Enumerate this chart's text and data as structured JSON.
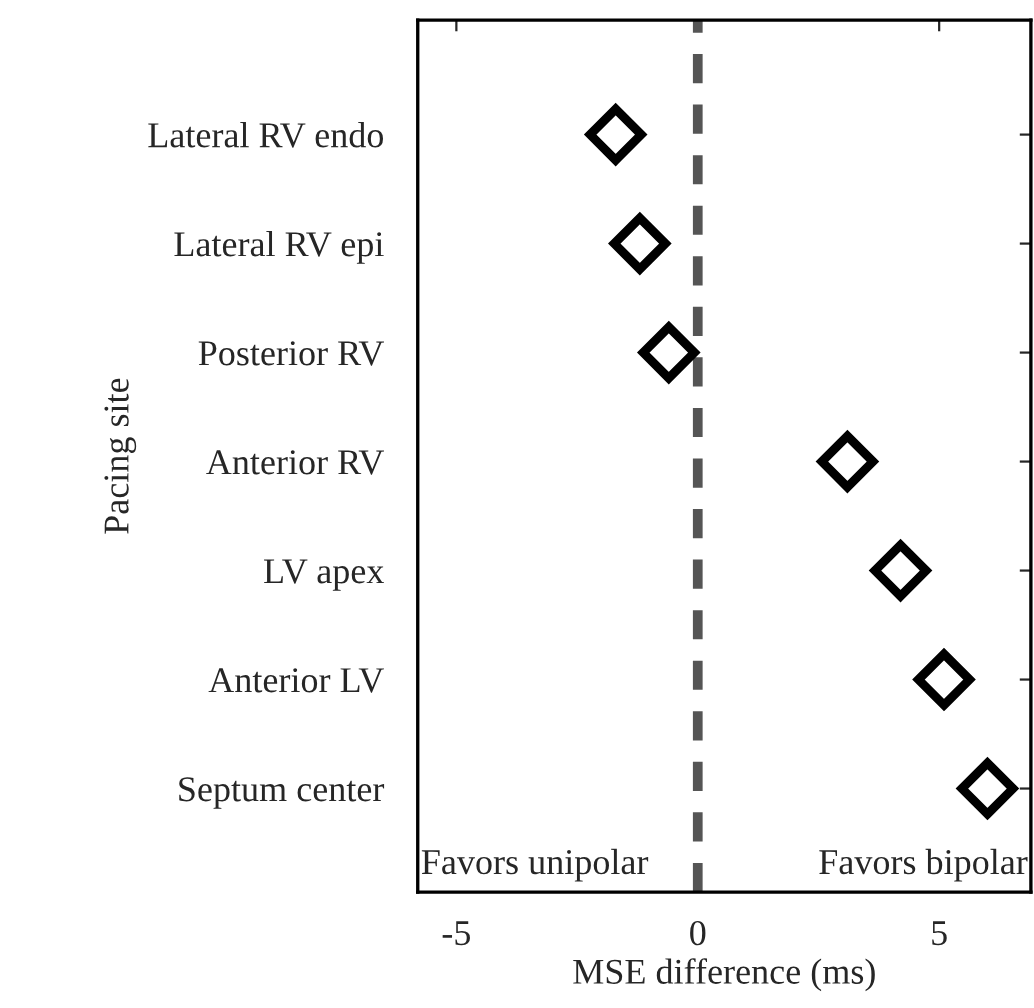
{
  "chart_data": {
    "type": "scatter",
    "xlabel": "MSE difference (ms)",
    "ylabel": "Pacing site",
    "categories": [
      "Lateral RV endo",
      "Lateral RV epi",
      "Posterior RV",
      "Anterior RV",
      "LV apex",
      "Anterior LV",
      "Septum center"
    ],
    "orientation": "horizontal",
    "series": [
      {
        "color": "#000000",
        "values": [
          -1.7,
          -1.2,
          -0.6,
          3.1,
          4.2,
          5.1,
          6.0
        ]
      }
    ],
    "xlim": [
      -5.8,
      6.9
    ],
    "xticks": [
      -5,
      0,
      5
    ],
    "marker": "diamond",
    "line_style": "none",
    "ref_lines": [
      {
        "axis": "x",
        "value": 0,
        "color": "#555555",
        "line_style": "dashed"
      }
    ],
    "annotations": [
      "Favors unipolar",
      "Favors bipolar"
    ],
    "grid": false,
    "legend": false
  }
}
